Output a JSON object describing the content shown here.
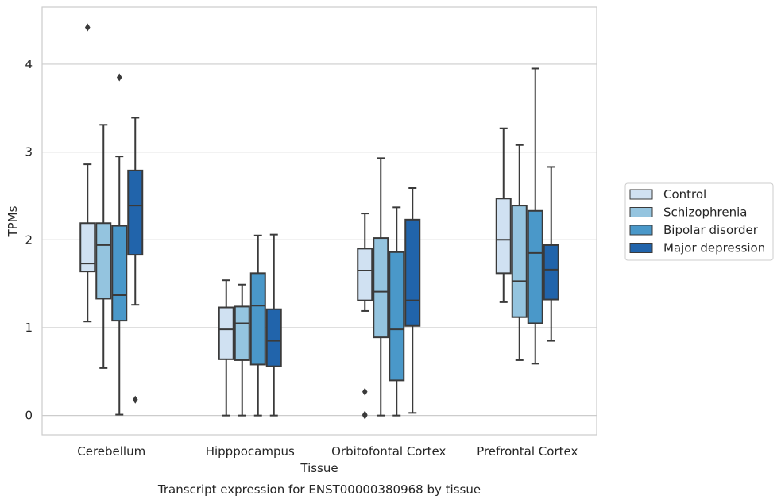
{
  "chart_data": {
    "type": "boxplot",
    "caption": "Transcript expression for ENST00000380968 by tissue",
    "xlabel": "Tissue",
    "ylabel": "TPMs",
    "ylim": [
      -0.22,
      4.65
    ],
    "yticks": [
      0,
      1,
      2,
      3,
      4
    ],
    "grid": "horizontal",
    "legend_position": "right",
    "categories": [
      "Cerebellum",
      "Hipppocampus",
      "Orbitofontal Cortex",
      "Prefrontal Cortex"
    ],
    "series": [
      {
        "name": "Control",
        "color": "#d0e1f2",
        "boxes": [
          {
            "whislo": 1.07,
            "q1": 1.64,
            "med": 1.73,
            "q3": 2.19,
            "whishi": 2.86,
            "fliers": [
              4.42
            ]
          },
          {
            "whislo": 0.0,
            "q1": 0.64,
            "med": 0.98,
            "q3": 1.23,
            "whishi": 1.54,
            "fliers": []
          },
          {
            "whislo": 1.19,
            "q1": 1.31,
            "med": 1.65,
            "q3": 1.9,
            "whishi": 2.3,
            "fliers": [
              0.27,
              0.0,
              0.01
            ]
          },
          {
            "whislo": 1.29,
            "q1": 1.62,
            "med": 2.0,
            "q3": 2.47,
            "whishi": 3.27,
            "fliers": []
          }
        ]
      },
      {
        "name": "Schizophrenia",
        "color": "#94c4df",
        "boxes": [
          {
            "whislo": 0.54,
            "q1": 1.33,
            "med": 1.94,
            "q3": 2.19,
            "whishi": 3.31,
            "fliers": []
          },
          {
            "whislo": 0.0,
            "q1": 0.63,
            "med": 1.05,
            "q3": 1.24,
            "whishi": 1.49,
            "fliers": []
          },
          {
            "whislo": 0.0,
            "q1": 0.89,
            "med": 1.41,
            "q3": 2.02,
            "whishi": 2.93,
            "fliers": []
          },
          {
            "whislo": 0.63,
            "q1": 1.12,
            "med": 1.53,
            "q3": 2.39,
            "whishi": 3.08,
            "fliers": []
          }
        ]
      },
      {
        "name": "Bipolar disorder",
        "color": "#4a98c9",
        "boxes": [
          {
            "whislo": 0.01,
            "q1": 1.08,
            "med": 1.37,
            "q3": 2.16,
            "whishi": 2.95,
            "fliers": [
              3.85
            ]
          },
          {
            "whislo": 0.0,
            "q1": 0.58,
            "med": 1.25,
            "q3": 1.62,
            "whishi": 2.05,
            "fliers": []
          },
          {
            "whislo": 0.0,
            "q1": 0.4,
            "med": 0.98,
            "q3": 1.86,
            "whishi": 2.37,
            "fliers": []
          },
          {
            "whislo": 0.59,
            "q1": 1.05,
            "med": 1.85,
            "q3": 2.33,
            "whishi": 3.95,
            "fliers": []
          }
        ]
      },
      {
        "name": "Major depression",
        "color": "#2164ab",
        "boxes": [
          {
            "whislo": 1.26,
            "q1": 1.83,
            "med": 2.39,
            "q3": 2.79,
            "whishi": 3.39,
            "fliers": [
              0.18
            ]
          },
          {
            "whislo": 0.0,
            "q1": 0.56,
            "med": 0.85,
            "q3": 1.21,
            "whishi": 2.06,
            "fliers": []
          },
          {
            "whislo": 0.03,
            "q1": 1.02,
            "med": 1.31,
            "q3": 2.23,
            "whishi": 2.59,
            "fliers": []
          },
          {
            "whislo": 0.85,
            "q1": 1.32,
            "med": 1.66,
            "q3": 1.94,
            "whishi": 2.83,
            "fliers": []
          }
        ]
      }
    ]
  }
}
